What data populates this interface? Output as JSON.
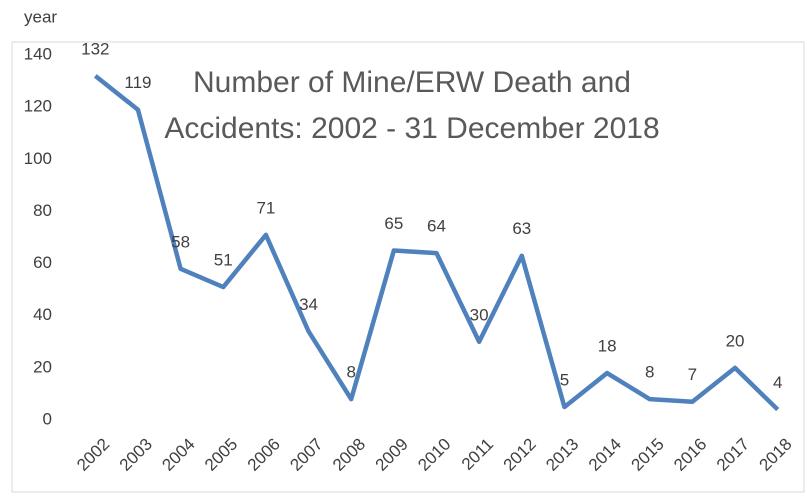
{
  "chart_data": {
    "type": "line",
    "title": [
      "Number of Mine/ERW Death and",
      "Accidents: 2002 - 31 December 2018"
    ],
    "y_label": "year",
    "categories": [
      "2002",
      "2003",
      "2004",
      "2005",
      "2006",
      "2007",
      "2008",
      "2009",
      "2010",
      "2011",
      "2012",
      "2013",
      "2014",
      "2015",
      "2016",
      "2017",
      "2018"
    ],
    "values": [
      132,
      119,
      58,
      51,
      71,
      34,
      8,
      65,
      64,
      30,
      63,
      5,
      18,
      8,
      7,
      20,
      4
    ],
    "color": "#4f81bd",
    "ylim": [
      0,
      140
    ],
    "yticks": [
      0,
      20,
      40,
      60,
      80,
      100,
      120,
      140
    ],
    "grid": false
  }
}
